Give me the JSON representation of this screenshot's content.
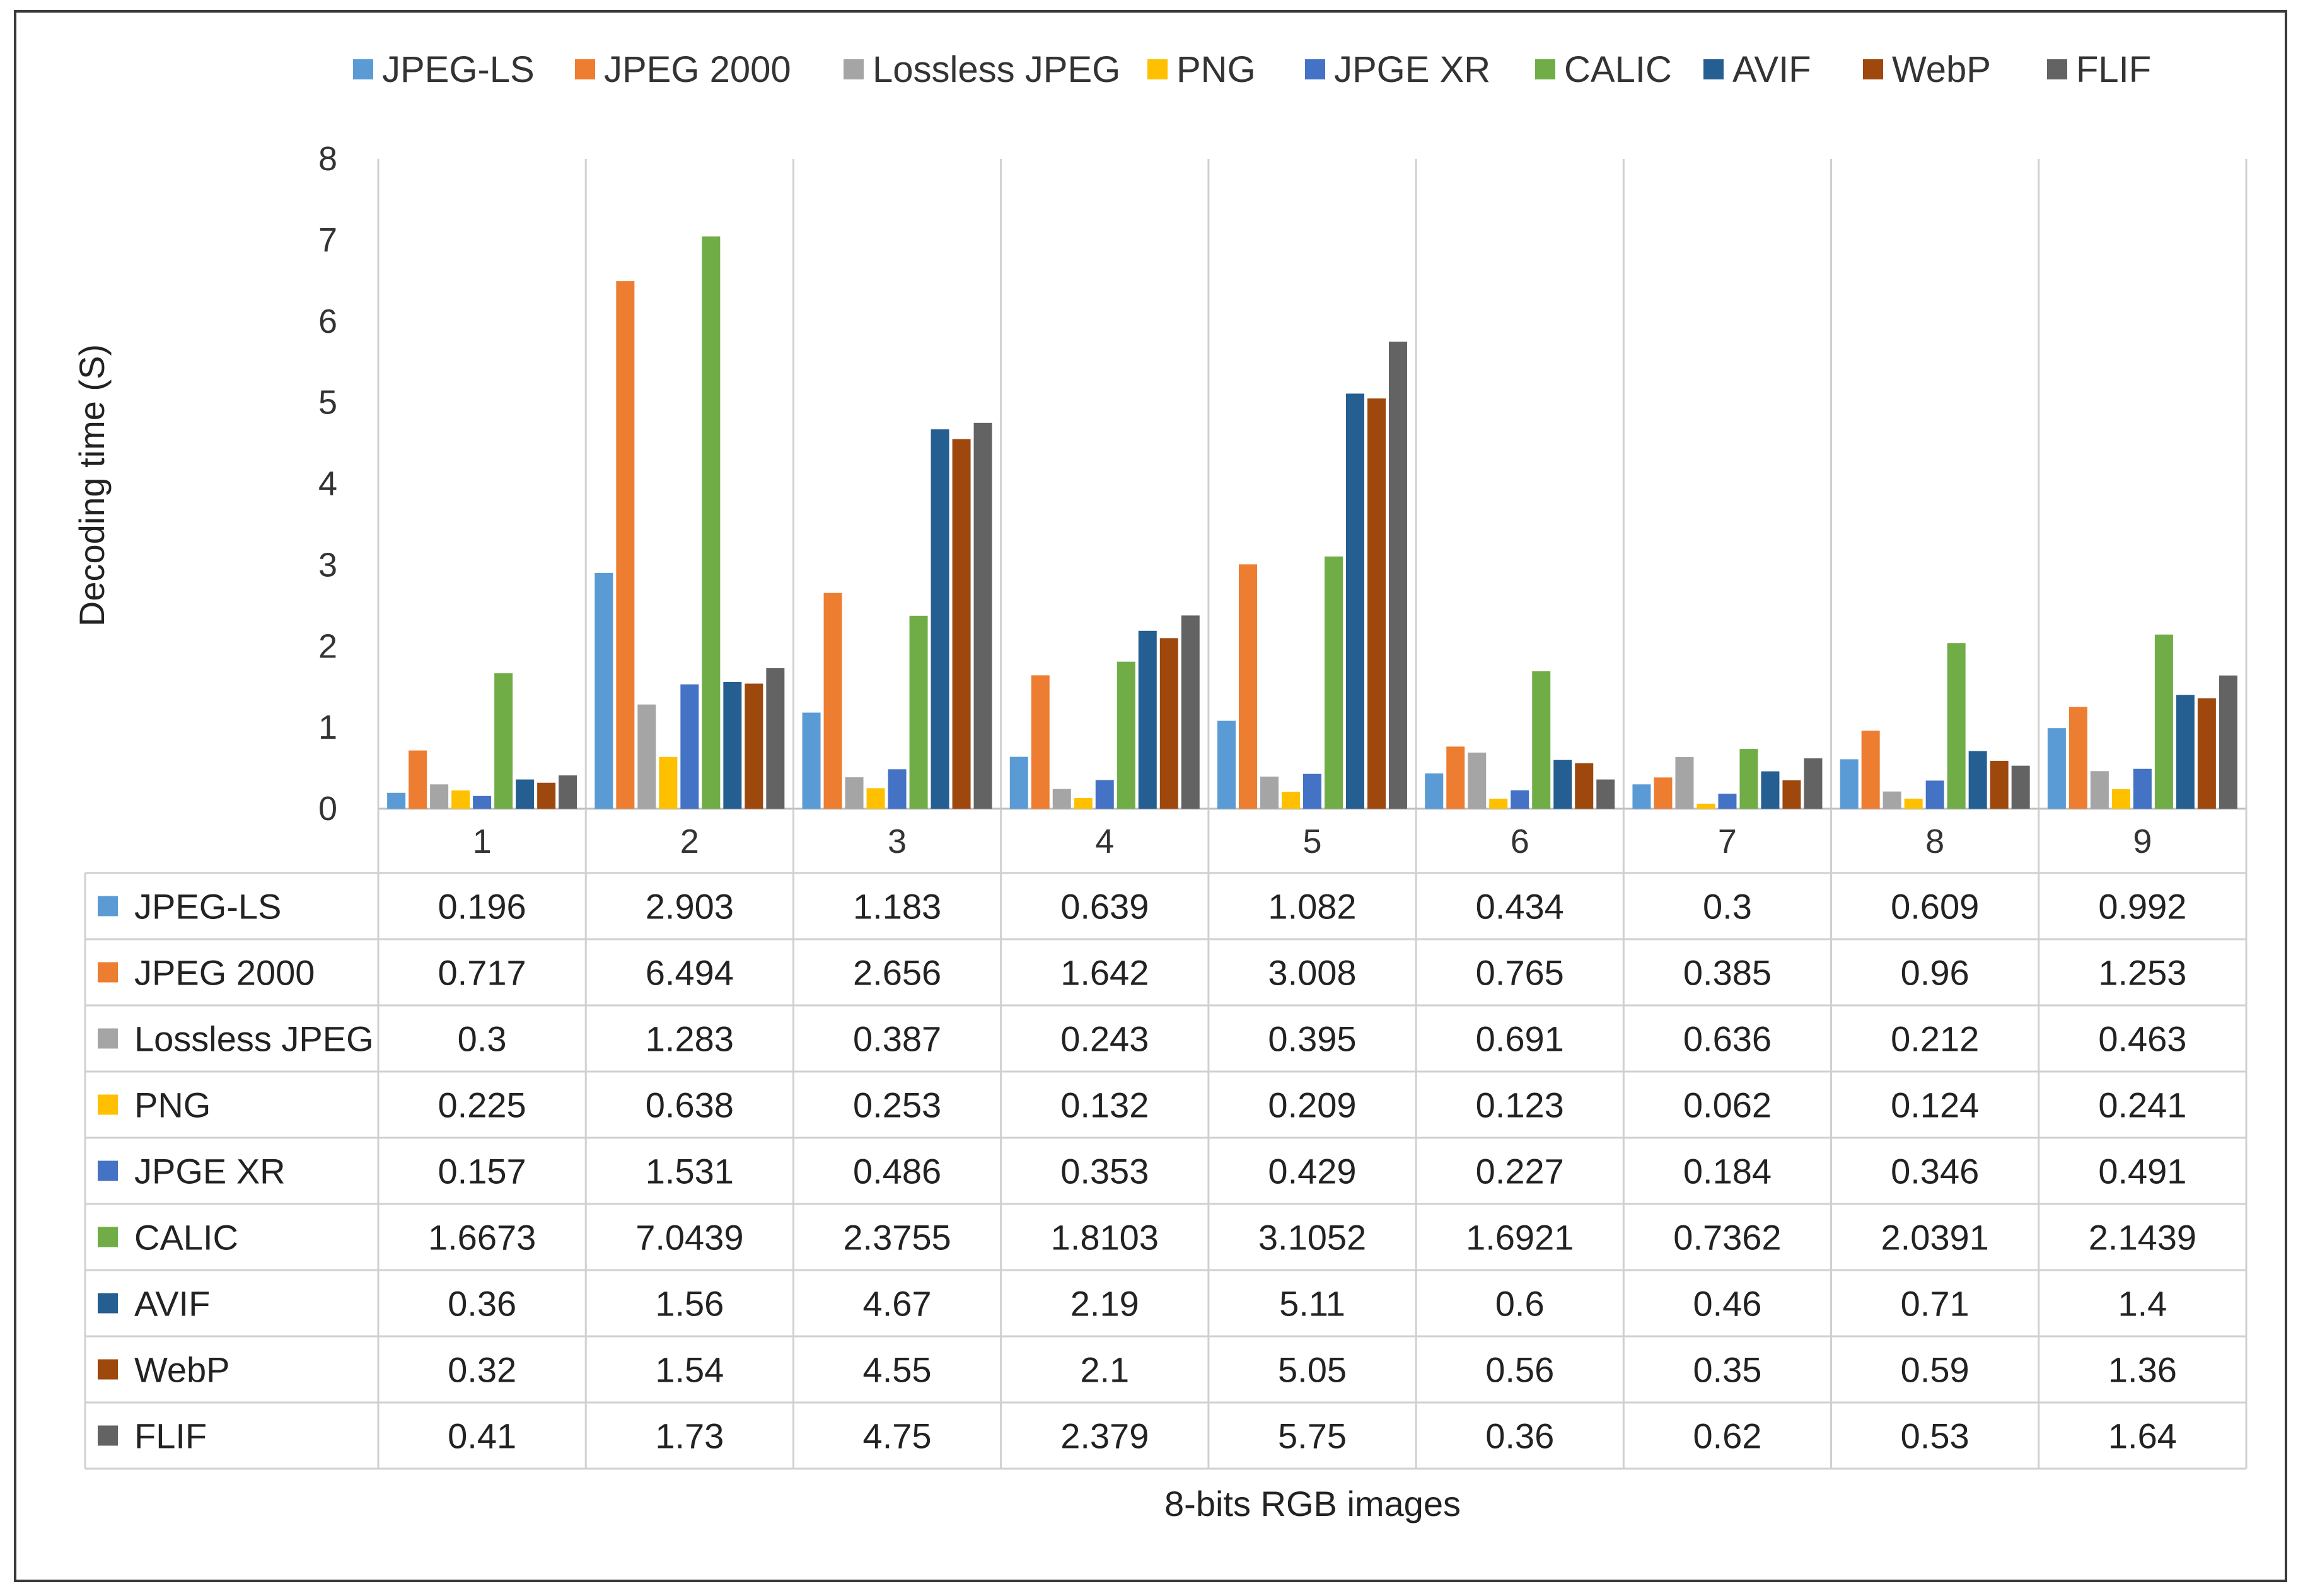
{
  "chart_data": {
    "type": "bar",
    "title": "",
    "xlabel": "8-bits RGB images",
    "ylabel": "Decoding time (S)",
    "ylim": [
      0,
      8
    ],
    "yticks": [
      0,
      1,
      2,
      3,
      4,
      5,
      6,
      7,
      8
    ],
    "grid": "vertical category separators",
    "legend_position": "top",
    "categories": [
      "1",
      "2",
      "3",
      "4",
      "5",
      "6",
      "7",
      "8",
      "9"
    ],
    "series": [
      {
        "name": "JPEG-LS",
        "color": "#5B9BD5",
        "values": [
          0.196,
          2.903,
          1.183,
          0.639,
          1.082,
          0.434,
          0.3,
          0.609,
          0.992
        ],
        "labels": [
          "0.196",
          "2.903",
          "1.183",
          "0.639",
          "1.082",
          "0.434",
          "0.3",
          "0.609",
          "0.992"
        ]
      },
      {
        "name": "JPEG 2000",
        "color": "#ED7D31",
        "values": [
          0.717,
          6.494,
          2.656,
          1.642,
          3.008,
          0.765,
          0.385,
          0.96,
          1.253
        ],
        "labels": [
          "0.717",
          "6.494",
          "2.656",
          "1.642",
          "3.008",
          "0.765",
          "0.385",
          "0.96",
          "1.253"
        ]
      },
      {
        "name": "Lossless JPEG",
        "color": "#A5A5A5",
        "values": [
          0.3,
          1.283,
          0.387,
          0.243,
          0.395,
          0.691,
          0.636,
          0.212,
          0.463
        ],
        "labels": [
          "0.3",
          "1.283",
          "0.387",
          "0.243",
          "0.395",
          "0.691",
          "0.636",
          "0.212",
          "0.463"
        ]
      },
      {
        "name": "PNG",
        "color": "#FFC000",
        "values": [
          0.225,
          0.638,
          0.253,
          0.132,
          0.209,
          0.123,
          0.062,
          0.124,
          0.241
        ],
        "labels": [
          "0.225",
          "0.638",
          "0.253",
          "0.132",
          "0.209",
          "0.123",
          "0.062",
          "0.124",
          "0.241"
        ]
      },
      {
        "name": "JPGE XR",
        "color": "#4472C4",
        "values": [
          0.157,
          1.531,
          0.486,
          0.353,
          0.429,
          0.227,
          0.184,
          0.346,
          0.491
        ],
        "labels": [
          "0.157",
          "1.531",
          "0.486",
          "0.353",
          "0.429",
          "0.227",
          "0.184",
          "0.346",
          "0.491"
        ]
      },
      {
        "name": "CALIC",
        "color": "#70AD47",
        "values": [
          1.6673,
          7.0439,
          2.3755,
          1.8103,
          3.1052,
          1.6921,
          0.7362,
          2.0391,
          2.1439
        ],
        "labels": [
          "1.6673",
          "7.0439",
          "2.3755",
          "1.8103",
          "3.1052",
          "1.6921",
          "0.7362",
          "2.0391",
          "2.1439"
        ]
      },
      {
        "name": "AVIF",
        "color": "#255E91",
        "values": [
          0.36,
          1.56,
          4.67,
          2.19,
          5.11,
          0.6,
          0.46,
          0.71,
          1.4
        ],
        "labels": [
          "0.36",
          "1.56",
          "4.67",
          "2.19",
          "5.11",
          "0.6",
          "0.46",
          "0.71",
          "1.4"
        ]
      },
      {
        "name": "WebP",
        "color": "#9E480E",
        "values": [
          0.32,
          1.54,
          4.55,
          2.1,
          5.05,
          0.56,
          0.35,
          0.59,
          1.36
        ],
        "labels": [
          "0.32",
          "1.54",
          "4.55",
          "2.1",
          "5.05",
          "0.56",
          "0.35",
          "0.59",
          "1.36"
        ]
      },
      {
        "name": "FLIF",
        "color": "#636363",
        "values": [
          0.41,
          1.73,
          4.75,
          2.379,
          5.75,
          0.36,
          0.62,
          0.53,
          1.64
        ],
        "labels": [
          "0.41",
          "1.73",
          "4.75",
          "2.379",
          "5.75",
          "0.36",
          "0.62",
          "0.53",
          "1.64"
        ]
      }
    ]
  }
}
